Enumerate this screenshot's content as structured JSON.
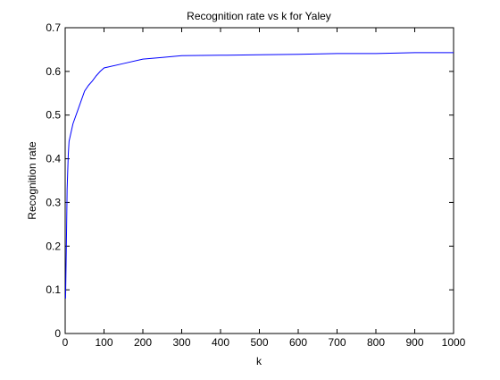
{
  "chart_data": {
    "type": "line",
    "title": "Recognition rate vs k for Yaley",
    "xlabel": "k",
    "ylabel": "Recognition rate",
    "xlim": [
      0,
      1000
    ],
    "ylim": [
      0,
      0.7
    ],
    "xticks": [
      0,
      100,
      200,
      300,
      400,
      500,
      600,
      700,
      800,
      900,
      1000
    ],
    "yticks": [
      0,
      0.1,
      0.2,
      0.3,
      0.4,
      0.5,
      0.6,
      0.7
    ],
    "xtick_labels": [
      "0",
      "100",
      "200",
      "300",
      "400",
      "500",
      "600",
      "700",
      "800",
      "900",
      "1000"
    ],
    "ytick_labels": [
      "0",
      "0.1",
      "0.2",
      "0.3",
      "0.4",
      "0.5",
      "0.6",
      "0.7"
    ],
    "grid": false,
    "legend": "none",
    "line_color": "#0000ff",
    "series": [
      {
        "x": [
          1,
          3,
          5,
          8,
          10,
          15,
          20,
          30,
          40,
          50,
          60,
          70,
          80,
          90,
          100,
          150,
          200,
          250,
          300,
          400,
          500,
          600,
          700,
          800,
          900,
          1000
        ],
        "y": [
          0.08,
          0.2,
          0.33,
          0.41,
          0.44,
          0.46,
          0.48,
          0.505,
          0.53,
          0.555,
          0.568,
          0.578,
          0.59,
          0.6,
          0.608,
          0.618,
          0.628,
          0.632,
          0.636,
          0.637,
          0.638,
          0.639,
          0.641,
          0.641,
          0.643,
          0.643
        ]
      }
    ]
  }
}
